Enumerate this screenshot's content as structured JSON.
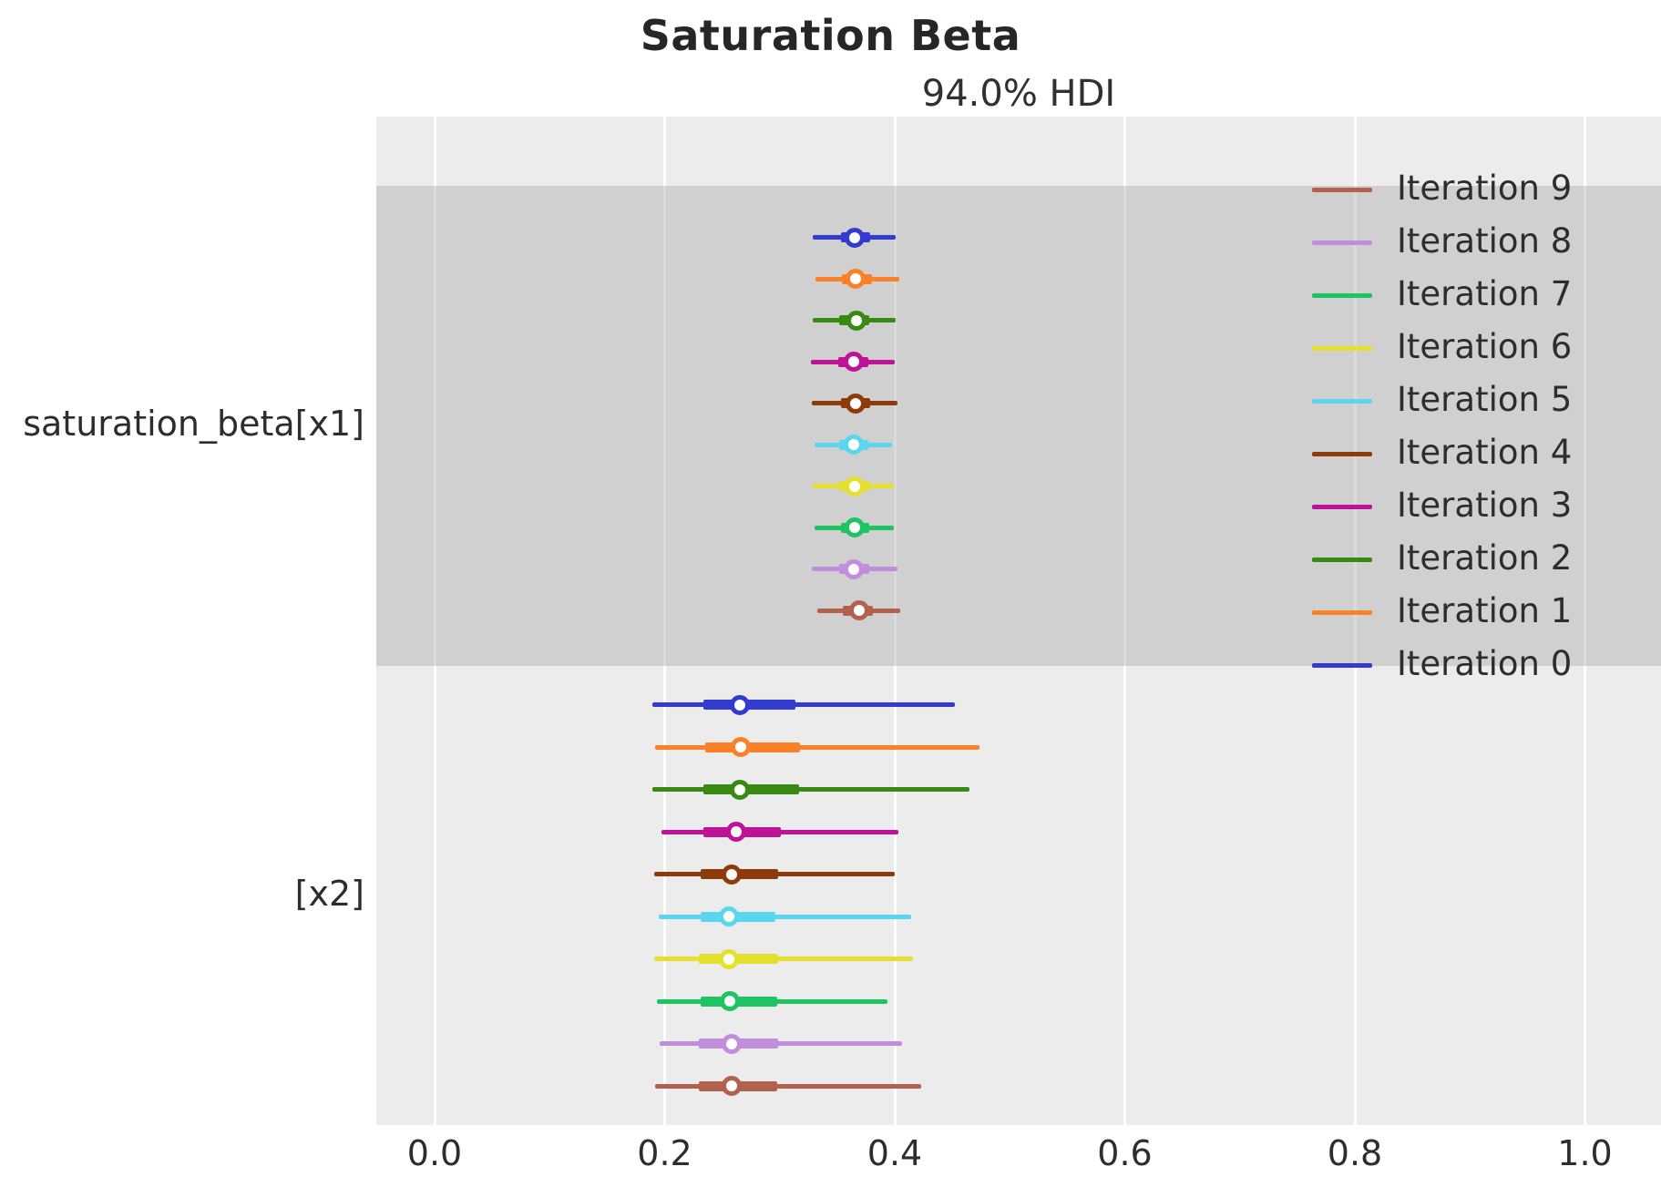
{
  "figure": {
    "title": "Saturation Beta",
    "axes_title": "94.0% HDI"
  },
  "y_axis": {
    "labels": [
      "saturation_beta[x1]",
      "[x2]"
    ]
  },
  "x_axis": {
    "tick_labels": [
      "0.0",
      "0.2",
      "0.4",
      "0.6",
      "0.8",
      "1.0"
    ],
    "tick_values": [
      0.0,
      0.2,
      0.4,
      0.6,
      0.8,
      1.0
    ]
  },
  "legend": {
    "position": "upper right",
    "items": [
      {
        "label": "Iteration 9",
        "color": "#b2614e"
      },
      {
        "label": "Iteration 8",
        "color": "#c08edb"
      },
      {
        "label": "Iteration 7",
        "color": "#1ec462"
      },
      {
        "label": "Iteration 6",
        "color": "#e5e02e"
      },
      {
        "label": "Iteration 5",
        "color": "#5bd6f0"
      },
      {
        "label": "Iteration 4",
        "color": "#8e3b0c"
      },
      {
        "label": "Iteration 3",
        "color": "#bf1296"
      },
      {
        "label": "Iteration 2",
        "color": "#388a12"
      },
      {
        "label": "Iteration 1",
        "color": "#f98128"
      },
      {
        "label": "Iteration 0",
        "color": "#333bd1"
      }
    ]
  },
  "chart_data": {
    "type": "forest",
    "title": "Saturation Beta",
    "subtitle": "94.0% HDI",
    "hdi_probability": 0.94,
    "xlim": [
      -0.051,
      1.066
    ],
    "grid": true,
    "legend_position": "upper right",
    "x_ticks": [
      0.0,
      0.2,
      0.4,
      0.6,
      0.8,
      1.0
    ],
    "groups": [
      {
        "label": "saturation_beta[x1]",
        "shaded": true,
        "rows": [
          {
            "iteration": "Iteration 0",
            "color": "#333bd1",
            "hdi_94": [
              0.329,
              0.401
            ],
            "quartile_range": [
              0.353,
              0.379
            ],
            "median": 0.365
          },
          {
            "iteration": "Iteration 1",
            "color": "#f98128",
            "hdi_94": [
              0.331,
              0.404
            ],
            "quartile_range": [
              0.354,
              0.38
            ],
            "median": 0.366
          },
          {
            "iteration": "Iteration 2",
            "color": "#388a12",
            "hdi_94": [
              0.329,
              0.401
            ],
            "quartile_range": [
              0.352,
              0.378
            ],
            "median": 0.367
          },
          {
            "iteration": "Iteration 3",
            "color": "#bf1296",
            "hdi_94": [
              0.327,
              0.4
            ],
            "quartile_range": [
              0.351,
              0.377
            ],
            "median": 0.364
          },
          {
            "iteration": "Iteration 4",
            "color": "#8e3b0c",
            "hdi_94": [
              0.328,
              0.402
            ],
            "quartile_range": [
              0.353,
              0.379
            ],
            "median": 0.366
          },
          {
            "iteration": "Iteration 5",
            "color": "#5bd6f0",
            "hdi_94": [
              0.33,
              0.398
            ],
            "quartile_range": [
              0.352,
              0.377
            ],
            "median": 0.364
          },
          {
            "iteration": "Iteration 6",
            "color": "#e5e02e",
            "hdi_94": [
              0.329,
              0.399
            ],
            "quartile_range": [
              0.352,
              0.378
            ],
            "median": 0.365
          },
          {
            "iteration": "Iteration 7",
            "color": "#1ec462",
            "hdi_94": [
              0.33,
              0.399
            ],
            "quartile_range": [
              0.353,
              0.378
            ],
            "median": 0.365
          },
          {
            "iteration": "Iteration 8",
            "color": "#c08edb",
            "hdi_94": [
              0.328,
              0.402
            ],
            "quartile_range": [
              0.352,
              0.378
            ],
            "median": 0.364
          },
          {
            "iteration": "Iteration 9",
            "color": "#b2614e",
            "hdi_94": [
              0.333,
              0.405
            ],
            "quartile_range": [
              0.355,
              0.381
            ],
            "median": 0.369
          }
        ]
      },
      {
        "label": "[x2]",
        "shaded": false,
        "rows": [
          {
            "iteration": "Iteration 0",
            "color": "#333bd1",
            "hdi_94": [
              0.189,
              0.452
            ],
            "quartile_range": [
              0.234,
              0.314
            ],
            "median": 0.265
          },
          {
            "iteration": "Iteration 1",
            "color": "#f98128",
            "hdi_94": [
              0.192,
              0.474
            ],
            "quartile_range": [
              0.235,
              0.318
            ],
            "median": 0.266
          },
          {
            "iteration": "Iteration 2",
            "color": "#388a12",
            "hdi_94": [
              0.189,
              0.465
            ],
            "quartile_range": [
              0.234,
              0.317
            ],
            "median": 0.265
          },
          {
            "iteration": "Iteration 3",
            "color": "#bf1296",
            "hdi_94": [
              0.197,
              0.403
            ],
            "quartile_range": [
              0.234,
              0.301
            ],
            "median": 0.262
          },
          {
            "iteration": "Iteration 4",
            "color": "#8e3b0c",
            "hdi_94": [
              0.191,
              0.4
            ],
            "quartile_range": [
              0.231,
              0.299
            ],
            "median": 0.258
          },
          {
            "iteration": "Iteration 5",
            "color": "#5bd6f0",
            "hdi_94": [
              0.195,
              0.414
            ],
            "quartile_range": [
              0.231,
              0.296
            ],
            "median": 0.256
          },
          {
            "iteration": "Iteration 6",
            "color": "#e5e02e",
            "hdi_94": [
              0.191,
              0.416
            ],
            "quartile_range": [
              0.23,
              0.299
            ],
            "median": 0.256
          },
          {
            "iteration": "Iteration 7",
            "color": "#1ec462",
            "hdi_94": [
              0.193,
              0.394
            ],
            "quartile_range": [
              0.231,
              0.298
            ],
            "median": 0.257
          },
          {
            "iteration": "Iteration 8",
            "color": "#c08edb",
            "hdi_94": [
              0.196,
              0.406
            ],
            "quartile_range": [
              0.23,
              0.299
            ],
            "median": 0.258
          },
          {
            "iteration": "Iteration 9",
            "color": "#b2614e",
            "hdi_94": [
              0.192,
              0.423
            ],
            "quartile_range": [
              0.23,
              0.298
            ],
            "median": 0.258
          }
        ]
      }
    ]
  }
}
